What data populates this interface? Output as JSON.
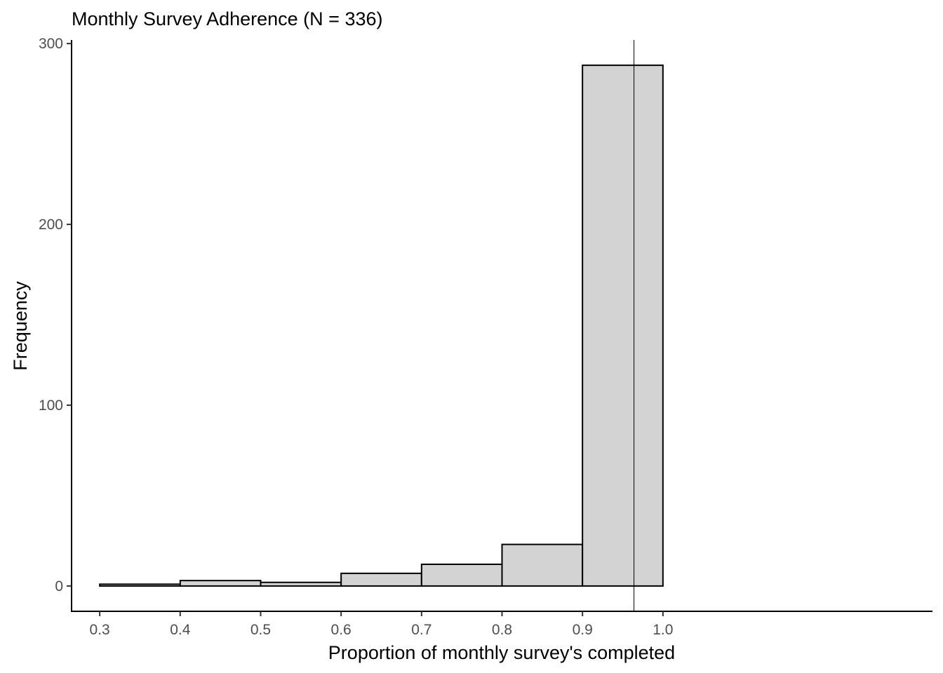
{
  "chart_data": {
    "type": "bar",
    "title": "Monthly Survey Adherence (N = 336)",
    "xlabel": "Proportion of monthly survey's completed",
    "ylabel": "Frequency",
    "xlim": [
      0.265,
      1.335
    ],
    "ylim": [
      -14,
      302
    ],
    "x_ticks": [
      0.3,
      0.4,
      0.5,
      0.6,
      0.7,
      0.8,
      0.9,
      1.0
    ],
    "x_tick_labels": [
      "0.3",
      "0.4",
      "0.5",
      "0.6",
      "0.7",
      "0.8",
      "0.9",
      "1.0"
    ],
    "y_ticks": [
      0,
      100,
      200,
      300
    ],
    "y_tick_labels": [
      "0",
      "100",
      "200",
      "300"
    ],
    "bins": [
      {
        "start": 0.3,
        "end": 0.4,
        "value": 1
      },
      {
        "start": 0.4,
        "end": 0.5,
        "value": 3
      },
      {
        "start": 0.5,
        "end": 0.6,
        "value": 2
      },
      {
        "start": 0.6,
        "end": 0.7,
        "value": 7
      },
      {
        "start": 0.7,
        "end": 0.8,
        "value": 12
      },
      {
        "start": 0.8,
        "end": 0.9,
        "value": 23
      },
      {
        "start": 0.9,
        "end": 1.0,
        "value": 288
      }
    ],
    "vline": 0.964,
    "grid": false,
    "colors": {
      "bar_fill": "#d3d3d3",
      "bar_outline": "#000000",
      "tick_text": "#4d4d4d"
    }
  }
}
